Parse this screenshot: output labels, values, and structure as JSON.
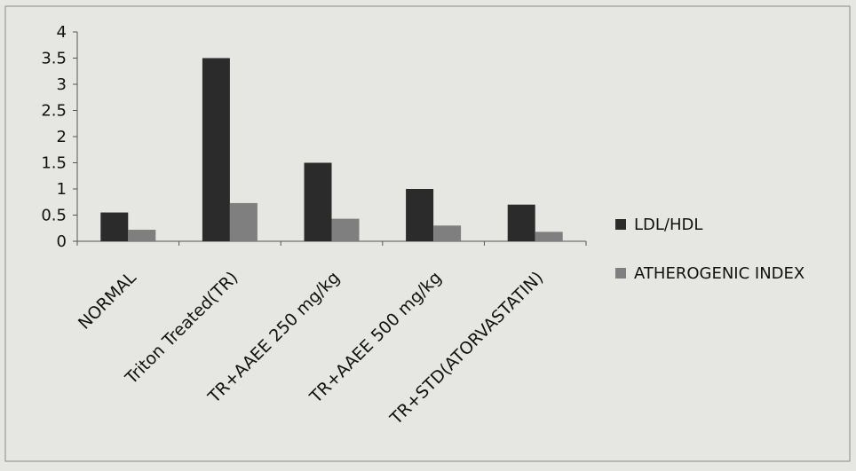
{
  "chart_data": {
    "type": "bar",
    "title": "",
    "xlabel": "",
    "ylabel": "",
    "categories": [
      "NORMAL",
      "Triton Treated(TR)",
      "TR+AAEE 250 mg/kg",
      "TR+AAEE 500 mg/kg",
      "TR+STD(ATORVASTATIN)"
    ],
    "series": [
      {
        "name": "LDL/HDL",
        "values": [
          0.55,
          3.5,
          1.5,
          1.0,
          0.7
        ],
        "color": "#2b2b2b"
      },
      {
        "name": "ATHEROGENIC INDEX",
        "values": [
          0.22,
          0.73,
          0.43,
          0.3,
          0.18
        ],
        "color": "#7f7f7f"
      }
    ],
    "ylim": [
      0,
      4
    ],
    "yticks": [
      0,
      0.5,
      1,
      1.5,
      2,
      2.5,
      3,
      3.5,
      4
    ],
    "ytick_labels": [
      "0",
      "0.5",
      "1",
      "1.5",
      "2",
      "2.5",
      "3",
      "3.5",
      "4"
    ],
    "grid": false,
    "legend_position": "right"
  }
}
